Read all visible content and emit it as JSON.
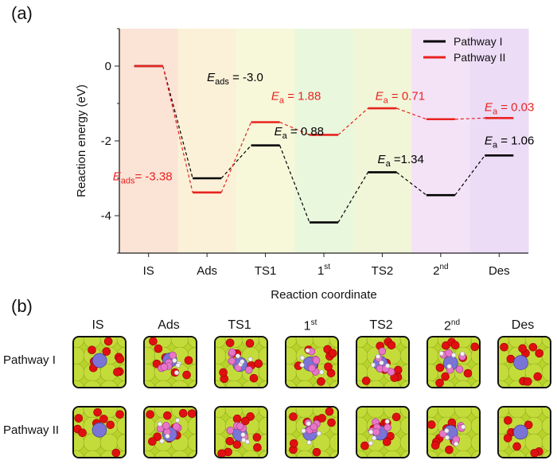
{
  "panel_a_label": "(a)",
  "panel_b_label": "(b)",
  "chart_data": {
    "type": "line",
    "title": "",
    "xlabel": "Reaction coordinate",
    "ylabel": "Reaction energy (eV)",
    "ylim": [
      -5,
      1
    ],
    "yticks": [
      "0",
      "-2",
      "-4"
    ],
    "ytick_values": [
      0,
      -2,
      -4
    ],
    "categories": [
      "IS",
      "Ads",
      "TS1",
      "1",
      "TS2",
      "2",
      "Des"
    ],
    "category_superscripts": [
      "",
      "",
      "",
      "st",
      "",
      "nd",
      ""
    ],
    "regions": [
      "#fbe3d6",
      "#fbf1d8",
      "#f7f7da",
      "#e9f7dd",
      "#f1f6d8",
      "#f4e3f7",
      "#ecdcf6"
    ],
    "legend_position": "top-right",
    "series": [
      {
        "name": "Pathway I",
        "color": "#000000",
        "values": [
          0,
          -3.0,
          -2.12,
          -4.18,
          -2.84,
          -3.45,
          -2.39
        ]
      },
      {
        "name": "Pathway II",
        "color": "#e8231f",
        "values": [
          0,
          -3.38,
          -1.5,
          -1.84,
          -1.13,
          -1.42,
          -1.39
        ]
      }
    ],
    "annotations": [
      {
        "prefix": "E",
        "sub": "ads",
        "text": " = -3.0",
        "color": "#000000",
        "anchor_x": 1,
        "anchor_y": -0.4
      },
      {
        "prefix": "E",
        "sub": "ads",
        "text": "= -3.38",
        "color": "#e8231f",
        "anchor_x": 0.0,
        "anchor_y": -3.05
      },
      {
        "prefix": "E",
        "sub": "a",
        "text": " = 1.88",
        "color": "#e8231f",
        "anchor_x": 2.1,
        "anchor_y": -0.9
      },
      {
        "prefix": "E",
        "sub": "a",
        "text": " = 0.88",
        "color": "#000000",
        "anchor_x": 2.15,
        "anchor_y": -1.85
      },
      {
        "prefix": "E",
        "sub": "a",
        "text": " = 0.71",
        "color": "#e8231f",
        "anchor_x": 3.88,
        "anchor_y": -0.9
      },
      {
        "prefix": "E",
        "sub": "a",
        "text": " =1.34",
        "color": "#000000",
        "anchor_x": 3.92,
        "anchor_y": -2.6
      },
      {
        "prefix": "E",
        "sub": "a",
        "text": " = 0.03",
        "color": "#e8231f",
        "anchor_x": 5.75,
        "anchor_y": -1.2
      },
      {
        "prefix": "E",
        "sub": "a",
        "text": " = 1.06",
        "color": "#000000",
        "anchor_x": 5.75,
        "anchor_y": -2.1
      }
    ]
  },
  "structures": {
    "columns": [
      {
        "label": "IS",
        "sup": ""
      },
      {
        "label": "Ads",
        "sup": ""
      },
      {
        "label": "TS1",
        "sup": ""
      },
      {
        "label": "1",
        "sup": "st"
      },
      {
        "label": "TS2",
        "sup": ""
      },
      {
        "label": "2",
        "sup": "nd"
      },
      {
        "label": "Des",
        "sup": ""
      }
    ],
    "rows": [
      "Pathway I",
      "Pathway II"
    ]
  }
}
